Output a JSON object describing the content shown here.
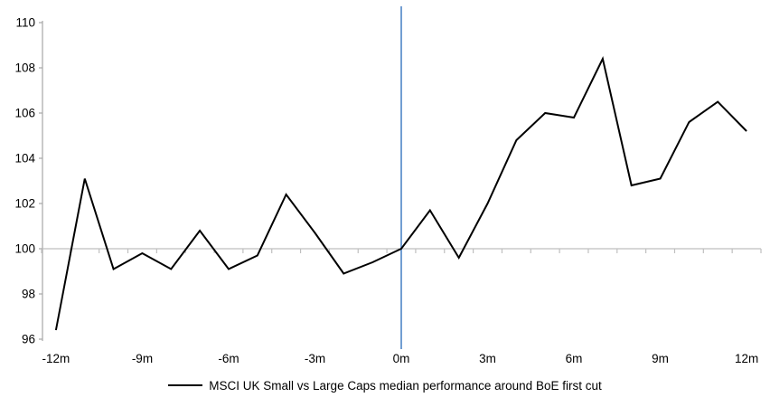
{
  "chart_data": {
    "type": "line",
    "title": "",
    "x": [
      -12,
      -11,
      -10,
      -9,
      -8,
      -7,
      -6,
      -5,
      -4,
      -3,
      -2,
      -1,
      0,
      1,
      2,
      3,
      4,
      5,
      6,
      7,
      8,
      9,
      10,
      11,
      12
    ],
    "series": [
      {
        "name": "MSCI UK Small vs Large Caps median performance around BoE first cut",
        "color": "#000000",
        "values": [
          96.4,
          103.1,
          99.1,
          99.8,
          99.1,
          100.8,
          99.1,
          99.7,
          102.4,
          100.7,
          98.9,
          99.4,
          100.0,
          101.7,
          99.6,
          102.0,
          104.8,
          106.0,
          105.8,
          108.4,
          102.8,
          103.1,
          105.6,
          106.5,
          105.2
        ]
      }
    ],
    "x_axis": {
      "tick_values": [
        -12,
        -9,
        -6,
        -3,
        0,
        3,
        6,
        9,
        12
      ],
      "tick_labels": [
        "-12m",
        "-9m",
        "-6m",
        "-3m",
        "0m",
        "3m",
        "6m",
        "9m",
        "12m"
      ],
      "minor_tick_every_month": true,
      "range": [
        -12.5,
        12.5
      ]
    },
    "y_axis": {
      "tick_values": [
        96,
        98,
        100,
        102,
        104,
        106,
        108,
        110
      ],
      "tick_labels": [
        "96",
        "98",
        "100",
        "102",
        "104",
        "106",
        "108",
        "110"
      ],
      "range": [
        96,
        110
      ]
    },
    "baseline": {
      "value": 100
    },
    "event_line": {
      "x": 0
    },
    "grid": "baseline-only",
    "legend_position": "bottom"
  },
  "legend": {
    "label": "MSCI UK Small vs Large Caps median performance around BoE first cut"
  },
  "colors": {
    "series": "#000000",
    "axis": "#a6a6a6",
    "baseline": "#bfbfbf",
    "event_line": "#4f86c6",
    "text": "#000000",
    "background": "#ffffff"
  }
}
